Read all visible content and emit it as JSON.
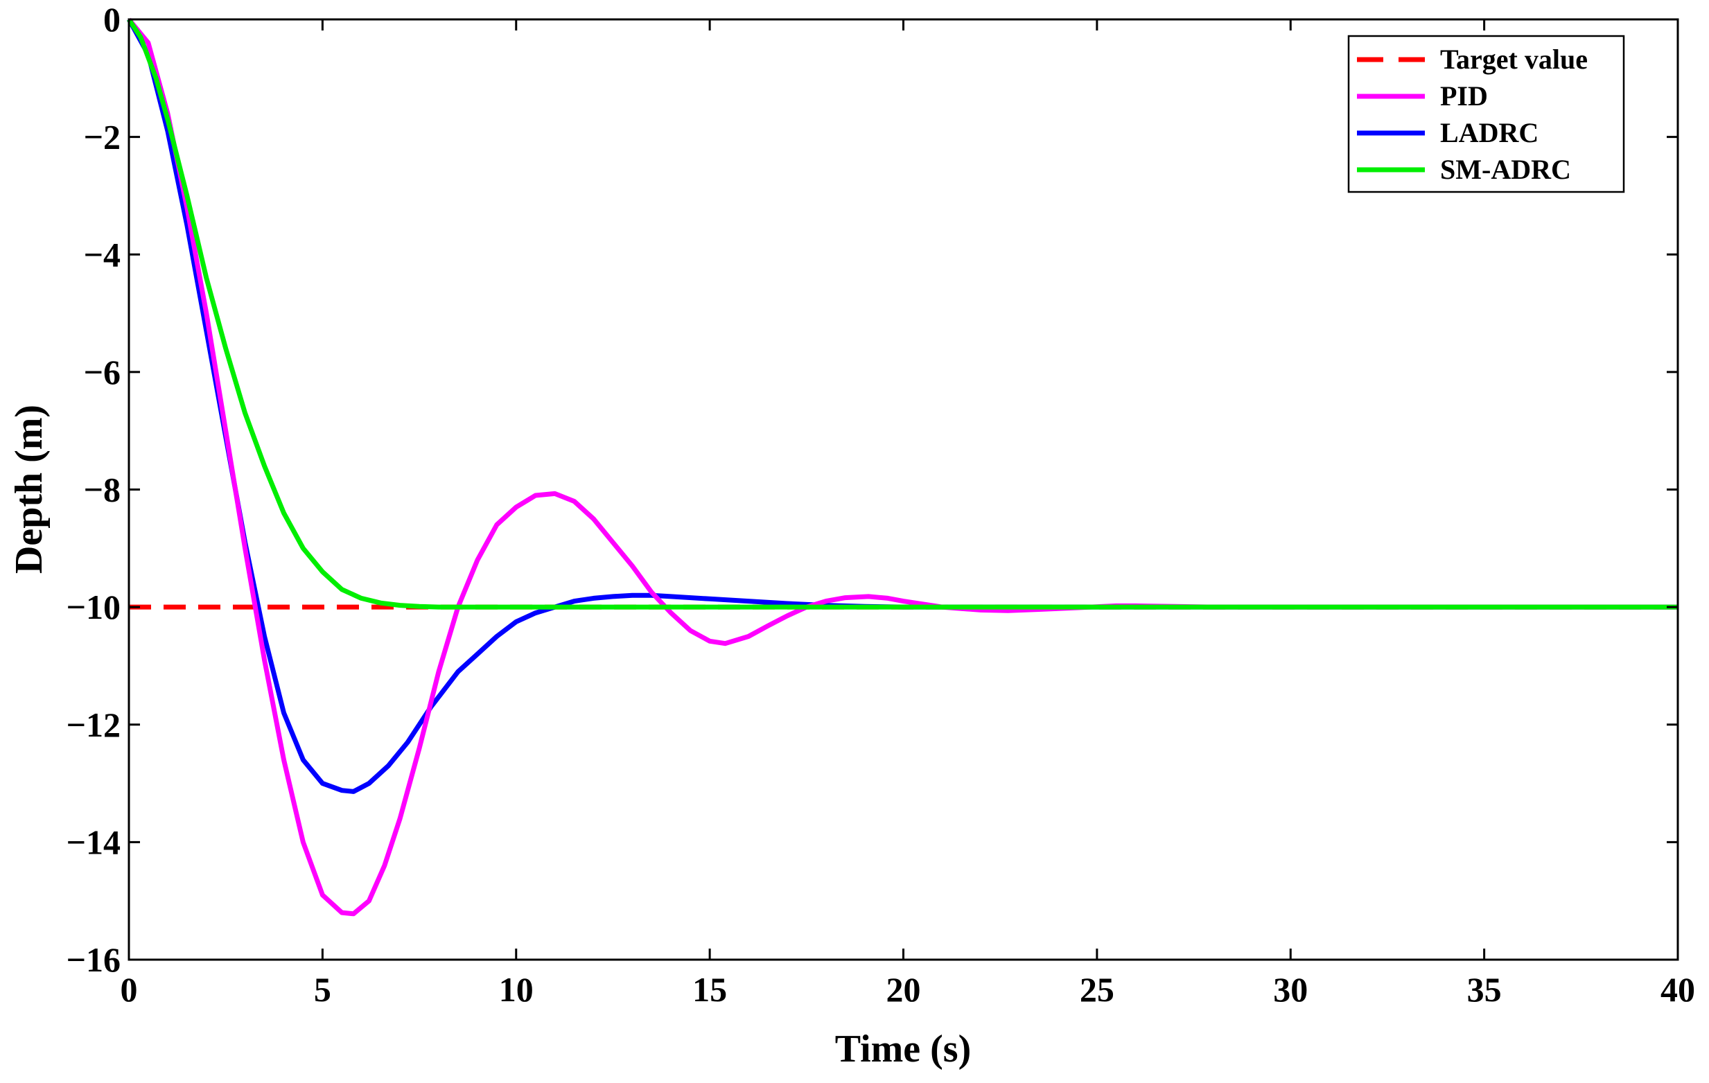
{
  "chart_data": {
    "type": "line",
    "title": "",
    "xlabel": "Time (s)",
    "ylabel": "Depth (m)",
    "xlim": [
      0,
      40
    ],
    "ylim": [
      -16,
      0
    ],
    "grid": false,
    "legend_position": "top-right",
    "x_ticks": [
      0,
      5,
      10,
      15,
      20,
      25,
      30,
      35,
      40
    ],
    "y_ticks": [
      0,
      -2,
      -4,
      -6,
      -8,
      -10,
      -12,
      -14,
      -16
    ],
    "x_tick_labels": [
      "0",
      "5",
      "10",
      "15",
      "20",
      "25",
      "30",
      "35",
      "40"
    ],
    "y_tick_labels": [
      "0",
      "−2",
      "−4",
      "−6",
      "−8",
      "−10",
      "−12",
      "−14",
      "−16"
    ],
    "series": [
      {
        "name": "Target value",
        "color": "#ff0000",
        "style": "dashed",
        "x": [
          0,
          40
        ],
        "y": [
          -10,
          -10
        ]
      },
      {
        "name": "PID",
        "color": "#ff00ff",
        "style": "solid",
        "x": [
          0,
          0.5,
          1,
          1.5,
          2,
          2.5,
          3,
          3.5,
          4,
          4.5,
          5,
          5.5,
          5.8,
          6.2,
          6.6,
          7,
          7.5,
          8,
          8.5,
          9,
          9.5,
          10,
          10.5,
          11,
          11.5,
          12,
          12.5,
          13,
          13.5,
          14,
          14.5,
          15,
          15.4,
          16,
          16.5,
          17,
          17.5,
          18,
          18.5,
          19.1,
          19.6,
          20,
          21,
          22,
          22.7,
          23.5,
          24.5,
          25.5,
          26,
          27,
          28,
          30,
          32,
          35,
          40
        ],
        "y": [
          0,
          -0.4,
          -1.6,
          -3.2,
          -5.0,
          -7.0,
          -9.0,
          -10.9,
          -12.6,
          -14.0,
          -14.9,
          -15.2,
          -15.22,
          -15.0,
          -14.4,
          -13.6,
          -12.4,
          -11.1,
          -10.0,
          -9.2,
          -8.6,
          -8.3,
          -8.1,
          -8.07,
          -8.2,
          -8.5,
          -8.9,
          -9.3,
          -9.75,
          -10.1,
          -10.4,
          -10.58,
          -10.62,
          -10.5,
          -10.32,
          -10.15,
          -10.0,
          -9.9,
          -9.84,
          -9.82,
          -9.85,
          -9.9,
          -10.0,
          -10.05,
          -10.06,
          -10.04,
          -10.01,
          -9.98,
          -9.98,
          -9.99,
          -10.0,
          -10.0,
          -10.0,
          -10.0,
          -10.0
        ]
      },
      {
        "name": "LADRC",
        "color": "#0000ff",
        "style": "solid",
        "x": [
          0,
          0.5,
          1,
          1.5,
          2,
          2.5,
          3,
          3.5,
          4,
          4.5,
          5,
          5.5,
          5.8,
          6.2,
          6.7,
          7.2,
          7.8,
          8.5,
          9,
          9.5,
          10,
          10.5,
          11,
          11.5,
          12,
          12.5,
          13,
          13.5,
          14,
          15,
          16,
          17,
          18,
          19,
          20,
          22,
          25,
          30,
          35,
          40
        ],
        "y": [
          0,
          -0.6,
          -1.9,
          -3.5,
          -5.3,
          -7.1,
          -8.9,
          -10.5,
          -11.8,
          -12.6,
          -13.0,
          -13.12,
          -13.14,
          -13.0,
          -12.7,
          -12.3,
          -11.7,
          -11.1,
          -10.8,
          -10.5,
          -10.25,
          -10.1,
          -10.0,
          -9.9,
          -9.85,
          -9.82,
          -9.8,
          -9.8,
          -9.82,
          -9.86,
          -9.9,
          -9.94,
          -9.97,
          -9.99,
          -10.0,
          -10.0,
          -10.0,
          -10.0,
          -10.0,
          -10.0
        ]
      },
      {
        "name": "SM-ADRC",
        "color": "#00ee00",
        "style": "solid",
        "x": [
          0,
          0.3,
          0.7,
          1,
          1.5,
          2,
          2.5,
          3,
          3.5,
          4,
          4.5,
          5,
          5.5,
          6,
          6.5,
          7,
          7.5,
          8,
          9,
          10,
          12,
          15,
          20,
          25,
          30,
          35,
          40
        ],
        "y": [
          0,
          -0.3,
          -1.0,
          -1.7,
          -3.0,
          -4.4,
          -5.6,
          -6.7,
          -7.6,
          -8.4,
          -9.0,
          -9.4,
          -9.7,
          -9.85,
          -9.93,
          -9.97,
          -9.99,
          -10.0,
          -10.0,
          -10.0,
          -10.0,
          -10.0,
          -10.0,
          -10.0,
          -10.0,
          -10.0,
          -10.0
        ]
      }
    ]
  }
}
